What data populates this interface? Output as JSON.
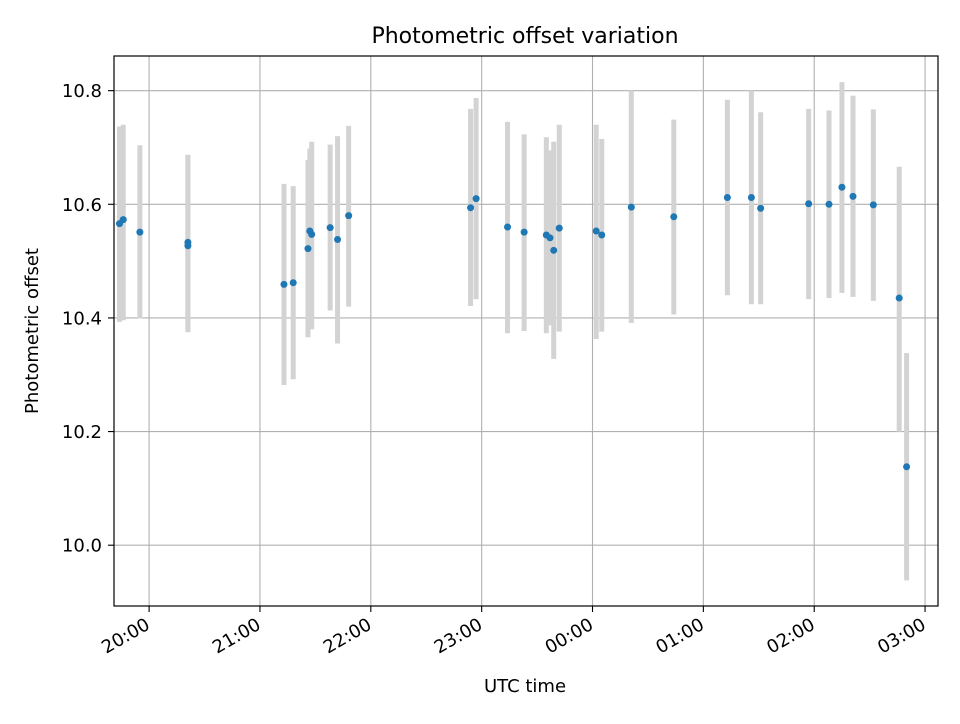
{
  "chart_data": {
    "type": "scatter",
    "title": "Photometric offset variation",
    "xlabel": "UTC time",
    "ylabel": "Photometric offset",
    "x_unit": "time of day (UTC), spans midnight",
    "xlim": [
      "19:41",
      "03:07"
    ],
    "ylim": [
      9.893,
      10.861
    ],
    "grid": true,
    "x_ticks": [
      "20:00",
      "21:00",
      "22:00",
      "23:00",
      "00:00",
      "01:00",
      "02:00",
      "03:00"
    ],
    "y_ticks": [
      "10.0",
      "10.2",
      "10.4",
      "10.6",
      "10.8"
    ],
    "series": [
      {
        "marker_color": "#1f77b4",
        "errorbar_color": "#d3d3d3",
        "points": [
          {
            "t": "19:44",
            "y": 10.566,
            "lo": 10.393,
            "hi": 10.737
          },
          {
            "t": "19:46",
            "y": 10.573,
            "lo": 10.396,
            "hi": 10.74
          },
          {
            "t": "19:55",
            "y": 10.551,
            "lo": 10.399,
            "hi": 10.704
          },
          {
            "t": "20:21",
            "y": 10.533,
            "lo": 10.375,
            "hi": 10.687
          },
          {
            "t": "20:21",
            "y": 10.527,
            "lo": 10.375,
            "hi": 10.687
          },
          {
            "t": "21:13",
            "y": 10.459,
            "lo": 10.282,
            "hi": 10.636
          },
          {
            "t": "21:18",
            "y": 10.462,
            "lo": 10.292,
            "hi": 10.632
          },
          {
            "t": "21:26",
            "y": 10.522,
            "lo": 10.366,
            "hi": 10.678
          },
          {
            "t": "21:27",
            "y": 10.553,
            "lo": 10.393,
            "hi": 10.698
          },
          {
            "t": "21:28",
            "y": 10.547,
            "lo": 10.38,
            "hi": 10.71
          },
          {
            "t": "21:38",
            "y": 10.559,
            "lo": 10.413,
            "hi": 10.705
          },
          {
            "t": "21:42",
            "y": 10.538,
            "lo": 10.355,
            "hi": 10.72
          },
          {
            "t": "21:48",
            "y": 10.58,
            "lo": 10.42,
            "hi": 10.738
          },
          {
            "t": "22:54",
            "y": 10.594,
            "lo": 10.421,
            "hi": 10.768
          },
          {
            "t": "22:57",
            "y": 10.61,
            "lo": 10.433,
            "hi": 10.787
          },
          {
            "t": "23:14",
            "y": 10.56,
            "lo": 10.373,
            "hi": 10.745
          },
          {
            "t": "23:23",
            "y": 10.551,
            "lo": 10.377,
            "hi": 10.723
          },
          {
            "t": "23:35",
            "y": 10.546,
            "lo": 10.373,
            "hi": 10.718
          },
          {
            "t": "23:37",
            "y": 10.541,
            "lo": 10.387,
            "hi": 10.695
          },
          {
            "t": "23:39",
            "y": 10.519,
            "lo": 10.328,
            "hi": 10.71
          },
          {
            "t": "23:42",
            "y": 10.558,
            "lo": 10.376,
            "hi": 10.74
          },
          {
            "t": "00:02",
            "y": 10.553,
            "lo": 10.363,
            "hi": 10.74
          },
          {
            "t": "00:05",
            "y": 10.546,
            "lo": 10.376,
            "hi": 10.715
          },
          {
            "t": "00:21",
            "y": 10.595,
            "lo": 10.391,
            "hi": 10.8
          },
          {
            "t": "00:44",
            "y": 10.578,
            "lo": 10.406,
            "hi": 10.749
          },
          {
            "t": "01:13",
            "y": 10.612,
            "lo": 10.44,
            "hi": 10.784
          },
          {
            "t": "01:26",
            "y": 10.612,
            "lo": 10.424,
            "hi": 10.8
          },
          {
            "t": "01:31",
            "y": 10.593,
            "lo": 10.424,
            "hi": 10.762
          },
          {
            "t": "01:57",
            "y": 10.601,
            "lo": 10.433,
            "hi": 10.768
          },
          {
            "t": "02:08",
            "y": 10.6,
            "lo": 10.435,
            "hi": 10.765
          },
          {
            "t": "02:15",
            "y": 10.63,
            "lo": 10.444,
            "hi": 10.815
          },
          {
            "t": "02:21",
            "y": 10.614,
            "lo": 10.437,
            "hi": 10.791
          },
          {
            "t": "02:32",
            "y": 10.599,
            "lo": 10.43,
            "hi": 10.767
          },
          {
            "t": "02:46",
            "y": 10.435,
            "lo": 10.2,
            "hi": 10.666
          },
          {
            "t": "02:50",
            "y": 10.138,
            "lo": 9.938,
            "hi": 10.338
          }
        ]
      }
    ]
  }
}
